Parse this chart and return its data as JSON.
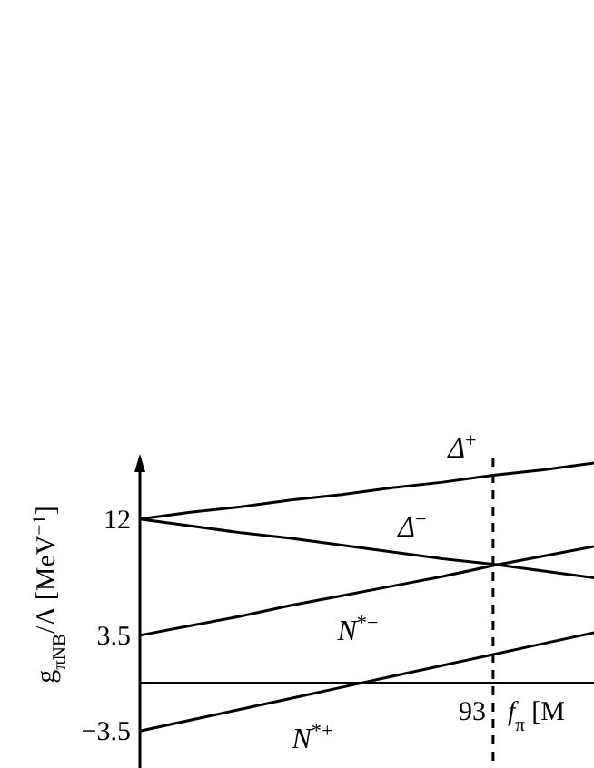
{
  "chart_data": {
    "type": "line",
    "xlabel": "f$_{π}$ [M",
    "ylabel": "g$_{πNB}$/Λ [MeV$^{−1}$]",
    "categories": [
      null,
      null,
      null,
      null,
      null,
      null,
      null,
      "93",
      null,
      null
    ],
    "ylim": [
      -6.2,
      16.5
    ],
    "yticks": [
      12,
      3.5,
      -3.5
    ],
    "series": [
      {
        "name": "Δ$^{+}$",
        "color": "#000000",
        "values": [
          12,
          12.5,
          12.9,
          13.4,
          13.8,
          14.3,
          14.7,
          15.2,
          15.6,
          16.1
        ]
      },
      {
        "name": "Δ$^{−}$",
        "color": "#000000",
        "values": [
          12,
          11.5,
          11.0,
          10.6,
          10.1,
          9.6,
          9.1,
          8.7,
          8.2,
          7.7
        ]
      },
      {
        "name": "N$^{*−}$",
        "color": "#000000",
        "values": [
          3.5,
          4.2,
          4.9,
          5.7,
          6.4,
          7.1,
          7.8,
          8.6,
          9.3,
          10.0
        ]
      },
      {
        "name": "N$^{*+}$",
        "color": "#000000",
        "values": [
          -3.5,
          -2.7,
          -1.9,
          -1.1,
          -0.3,
          0.5,
          1.3,
          2.1,
          2.9,
          3.7
        ]
      }
    ],
    "ref_lines": [
      {
        "axis": "x",
        "value": "93",
        "line_style": "dashed",
        "color": "#000000"
      }
    ],
    "grid": false,
    "legend": false,
    "marker": "none",
    "line_style": "solid"
  }
}
